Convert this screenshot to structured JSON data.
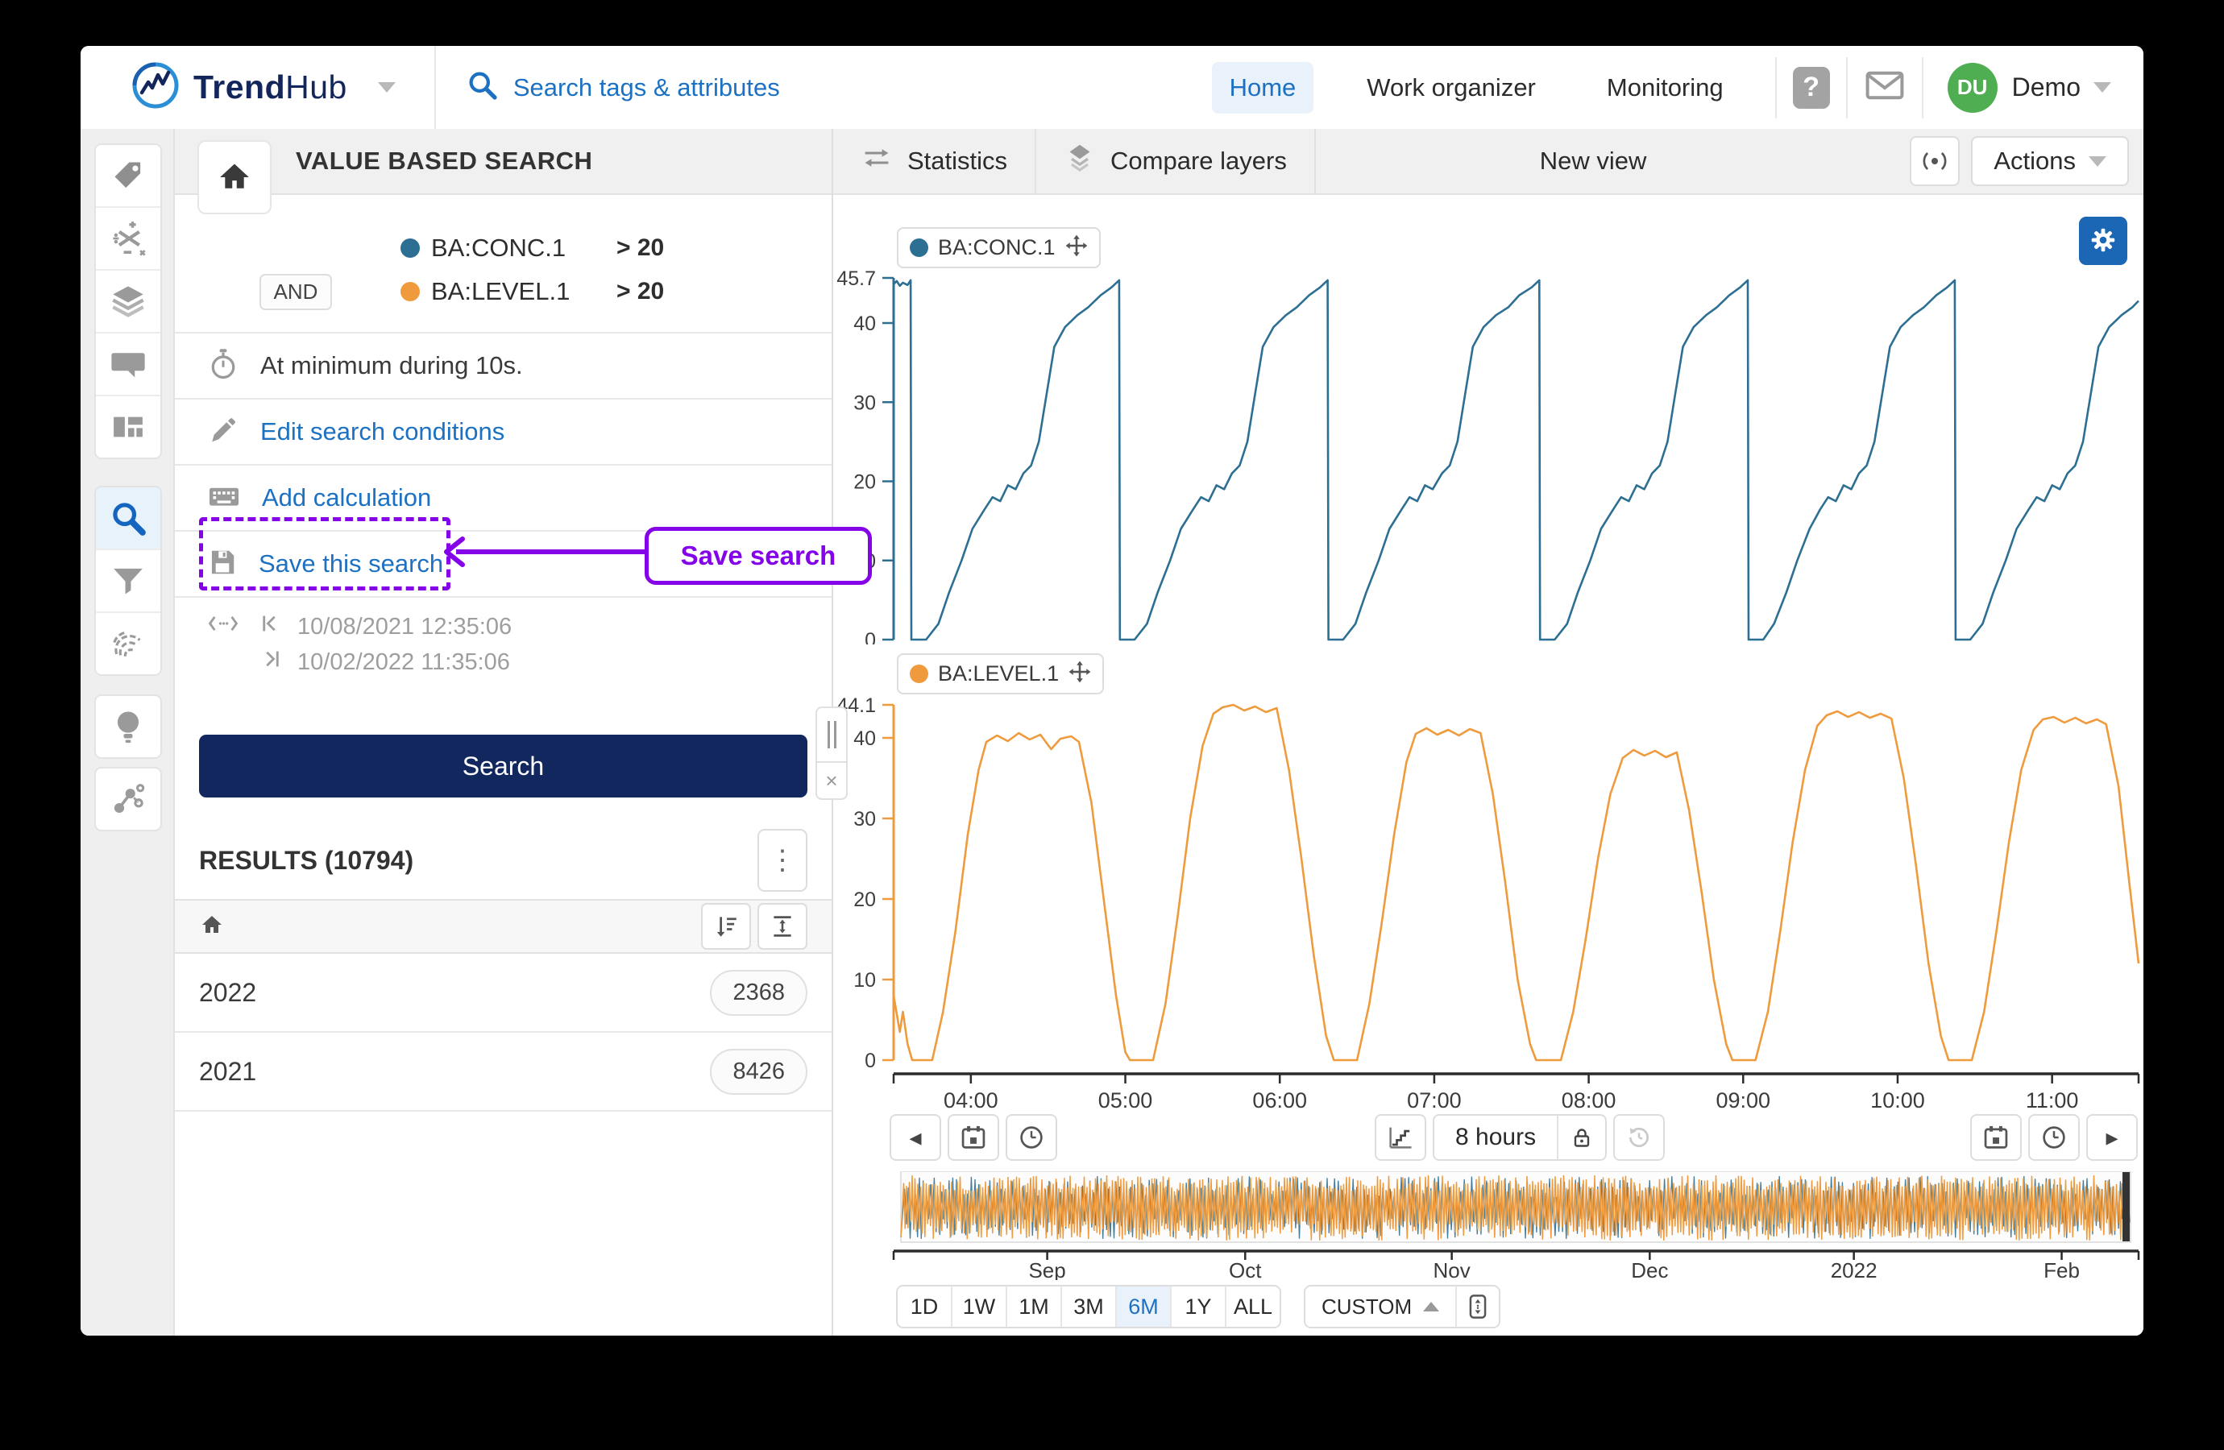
{
  "app": {
    "logo": {
      "trend": "Trend",
      "hub": "Hub"
    },
    "search_placeholder": "Search tags & attributes",
    "nav": [
      {
        "label": "Home",
        "active": true
      },
      {
        "label": "Work organizer",
        "active": false
      },
      {
        "label": "Monitoring",
        "active": false
      }
    ],
    "help_glyph": "?",
    "user": {
      "initials": "DU",
      "name": "Demo"
    }
  },
  "icons": {
    "kebab": "⋮",
    "close": "×",
    "arrow_left": "◂",
    "arrow_right": "▸"
  },
  "search_panel": {
    "title": "VALUE BASED SEARCH",
    "conditions": [
      {
        "tag": "BA:CONC.1",
        "operator": ">",
        "value": "20",
        "color": "#2d6f93",
        "conjunction": ""
      },
      {
        "tag": "BA:LEVEL.1",
        "operator": ">",
        "value": "20",
        "color": "#ef9b3d",
        "conjunction": "AND"
      }
    ],
    "duration_text": "At minimum during 10s.",
    "edit_link": "Edit search conditions",
    "add_calc_link": "Add calculation",
    "save_link": "Save this search",
    "annotation": {
      "label": "Save search",
      "color": "#8403e8"
    },
    "range": {
      "start": "10/08/2021 12:35:06",
      "end": "10/02/2022 11:35:06"
    },
    "search_button_label": "Search",
    "results_title": "RESULTS (10794)",
    "results": [
      {
        "label": "2022",
        "count": "2368"
      },
      {
        "label": "2021",
        "count": "8426"
      }
    ]
  },
  "view": {
    "tabs": [
      {
        "label": "Statistics"
      },
      {
        "label": "Compare layers"
      }
    ],
    "title": "New view",
    "actions_label": "Actions",
    "interval_label": "8 hours",
    "custom_label": "CUSTOM",
    "zoom_buttons": [
      {
        "label": "1D"
      },
      {
        "label": "1W"
      },
      {
        "label": "1M"
      },
      {
        "label": "3M"
      },
      {
        "label": "6M",
        "active": true
      },
      {
        "label": "1Y"
      },
      {
        "label": "ALL"
      }
    ],
    "active_zoom": "6M"
  },
  "chart_data": [
    {
      "type": "line",
      "title": "BA:CONC.1",
      "color": "#2d6f93",
      "x_range": [
        3.5,
        11.56
      ],
      "ylim": [
        0,
        45.7
      ],
      "grid": false,
      "y_ticks": [
        {
          "v": 0,
          "label": "0"
        },
        {
          "v": 10,
          "label": "10"
        },
        {
          "v": 20,
          "label": "20"
        },
        {
          "v": 30,
          "label": "30"
        },
        {
          "v": 40,
          "label": "40"
        },
        {
          "v": 45.7,
          "label": "45.7"
        }
      ],
      "x_ticks": [
        {
          "label": "04:00",
          "hour": 4
        },
        {
          "label": "05:00",
          "hour": 5
        },
        {
          "label": "06:00",
          "hour": 6
        },
        {
          "label": "07:00",
          "hour": 7
        },
        {
          "label": "08:00",
          "hour": 8
        },
        {
          "label": "09:00",
          "hour": 9
        },
        {
          "label": "10:00",
          "hour": 10
        },
        {
          "label": "11:00",
          "hour": 11
        }
      ],
      "points": [
        [
          3.5,
          44.9
        ],
        [
          3.52,
          45.3
        ],
        [
          3.54,
          44.7
        ],
        [
          3.56,
          45.1
        ],
        [
          3.59,
          44.8
        ],
        [
          3.61,
          45.4
        ],
        [
          3.615,
          0
        ],
        [
          3.71,
          0
        ],
        [
          3.79,
          2
        ],
        [
          3.86,
          6
        ],
        [
          3.94,
          10
        ],
        [
          4.01,
          14
        ],
        [
          4.09,
          16.5
        ],
        [
          4.14,
          18
        ],
        [
          4.19,
          17.5
        ],
        [
          4.24,
          19.5
        ],
        [
          4.29,
          19
        ],
        [
          4.34,
          21
        ],
        [
          4.39,
          22
        ],
        [
          4.44,
          25
        ],
        [
          4.49,
          31
        ],
        [
          4.54,
          37
        ],
        [
          4.61,
          39.5
        ],
        [
          4.69,
          41
        ],
        [
          4.76,
          42
        ],
        [
          4.84,
          43.5
        ],
        [
          4.91,
          44.5
        ],
        [
          4.96,
          45.4
        ],
        [
          4.965,
          0
        ],
        [
          5.06,
          0
        ],
        [
          5.14,
          2
        ],
        [
          5.21,
          6
        ],
        [
          5.29,
          10
        ],
        [
          5.36,
          14
        ],
        [
          5.44,
          16.5
        ],
        [
          5.49,
          18
        ],
        [
          5.54,
          17.5
        ],
        [
          5.59,
          19.5
        ],
        [
          5.64,
          19
        ],
        [
          5.69,
          21
        ],
        [
          5.74,
          22
        ],
        [
          5.79,
          25
        ],
        [
          5.84,
          31
        ],
        [
          5.89,
          37
        ],
        [
          5.96,
          39.5
        ],
        [
          6.04,
          41
        ],
        [
          6.11,
          42
        ],
        [
          6.19,
          43.5
        ],
        [
          6.26,
          44.5
        ],
        [
          6.31,
          45.4
        ],
        [
          6.315,
          0
        ],
        [
          6.41,
          0
        ],
        [
          6.49,
          2
        ],
        [
          6.56,
          6
        ],
        [
          6.64,
          10
        ],
        [
          6.71,
          14
        ],
        [
          6.79,
          16.5
        ],
        [
          6.84,
          18
        ],
        [
          6.89,
          17.5
        ],
        [
          6.94,
          19.5
        ],
        [
          6.99,
          19
        ],
        [
          7.05,
          21
        ],
        [
          7.1,
          22
        ],
        [
          7.15,
          25
        ],
        [
          7.2,
          31
        ],
        [
          7.25,
          37
        ],
        [
          7.32,
          39.5
        ],
        [
          7.4,
          41
        ],
        [
          7.48,
          42
        ],
        [
          7.55,
          43.5
        ],
        [
          7.63,
          44.5
        ],
        [
          7.68,
          45.4
        ],
        [
          7.685,
          0
        ],
        [
          7.78,
          0
        ],
        [
          7.86,
          2
        ],
        [
          7.93,
          6
        ],
        [
          8.01,
          10
        ],
        [
          8.08,
          14
        ],
        [
          8.16,
          16.5
        ],
        [
          8.21,
          18
        ],
        [
          8.26,
          17.5
        ],
        [
          8.31,
          19.5
        ],
        [
          8.36,
          19
        ],
        [
          8.41,
          21
        ],
        [
          8.46,
          22
        ],
        [
          8.51,
          25
        ],
        [
          8.56,
          31
        ],
        [
          8.61,
          37
        ],
        [
          8.68,
          39.5
        ],
        [
          8.76,
          41
        ],
        [
          8.83,
          42
        ],
        [
          8.91,
          43.5
        ],
        [
          8.98,
          44.5
        ],
        [
          9.03,
          45.4
        ],
        [
          9.035,
          0
        ],
        [
          9.13,
          0
        ],
        [
          9.2,
          2
        ],
        [
          9.28,
          6
        ],
        [
          9.35,
          10
        ],
        [
          9.43,
          14
        ],
        [
          9.5,
          16.5
        ],
        [
          9.55,
          18
        ],
        [
          9.6,
          17.5
        ],
        [
          9.65,
          19.5
        ],
        [
          9.7,
          19
        ],
        [
          9.75,
          21
        ],
        [
          9.8,
          22
        ],
        [
          9.85,
          25
        ],
        [
          9.9,
          31
        ],
        [
          9.95,
          37
        ],
        [
          10.02,
          39.5
        ],
        [
          10.1,
          41
        ],
        [
          10.17,
          42
        ],
        [
          10.25,
          43.5
        ],
        [
          10.32,
          44.5
        ],
        [
          10.37,
          45.4
        ],
        [
          10.375,
          0
        ],
        [
          10.47,
          0
        ],
        [
          10.55,
          2
        ],
        [
          10.62,
          6
        ],
        [
          10.7,
          10
        ],
        [
          10.77,
          14
        ],
        [
          10.85,
          16.5
        ],
        [
          10.9,
          18
        ],
        [
          10.95,
          17.5
        ],
        [
          11.0,
          19.5
        ],
        [
          11.05,
          19
        ],
        [
          11.1,
          21
        ],
        [
          11.15,
          22
        ],
        [
          11.2,
          25
        ],
        [
          11.25,
          31
        ],
        [
          11.3,
          37
        ],
        [
          11.37,
          39.5
        ],
        [
          11.45,
          41
        ],
        [
          11.52,
          42
        ],
        [
          11.56,
          42.8
        ]
      ]
    },
    {
      "type": "line",
      "title": "BA:LEVEL.1",
      "color": "#ef9b3d",
      "x_range": [
        3.5,
        11.56
      ],
      "ylim": [
        0,
        44.1
      ],
      "grid": false,
      "y_ticks": [
        {
          "v": 0,
          "label": "0"
        },
        {
          "v": 10,
          "label": "10"
        },
        {
          "v": 20,
          "label": "20"
        },
        {
          "v": 30,
          "label": "30"
        },
        {
          "v": 40,
          "label": "40"
        },
        {
          "v": 44.1,
          "label": "44.1"
        }
      ],
      "x_ticks": [
        {
          "label": "04:00",
          "hour": 4
        },
        {
          "label": "05:00",
          "hour": 5
        },
        {
          "label": "06:00",
          "hour": 6
        },
        {
          "label": "07:00",
          "hour": 7
        },
        {
          "label": "08:00",
          "hour": 8
        },
        {
          "label": "09:00",
          "hour": 9
        },
        {
          "label": "10:00",
          "hour": 10
        },
        {
          "label": "11:00",
          "hour": 11
        }
      ],
      "points": [
        [
          3.5,
          8
        ],
        [
          3.54,
          3.5
        ],
        [
          3.56,
          6
        ],
        [
          3.59,
          2
        ],
        [
          3.62,
          0
        ],
        [
          3.75,
          0
        ],
        [
          3.82,
          6
        ],
        [
          3.9,
          16
        ],
        [
          3.98,
          28
        ],
        [
          4.05,
          36
        ],
        [
          4.1,
          39.5
        ],
        [
          4.17,
          40.3
        ],
        [
          4.24,
          39.6
        ],
        [
          4.31,
          40.6
        ],
        [
          4.38,
          39.8
        ],
        [
          4.45,
          40.4
        ],
        [
          4.52,
          38.6
        ],
        [
          4.58,
          39.9
        ],
        [
          4.65,
          40.2
        ],
        [
          4.7,
          39.5
        ],
        [
          4.78,
          32
        ],
        [
          4.86,
          20
        ],
        [
          4.94,
          8
        ],
        [
          5.0,
          1
        ],
        [
          5.03,
          0
        ],
        [
          5.18,
          0
        ],
        [
          5.26,
          7
        ],
        [
          5.34,
          18
        ],
        [
          5.42,
          30
        ],
        [
          5.5,
          39
        ],
        [
          5.57,
          43
        ],
        [
          5.63,
          43.8
        ],
        [
          5.7,
          44.1
        ],
        [
          5.77,
          43.4
        ],
        [
          5.84,
          43.9
        ],
        [
          5.91,
          43.2
        ],
        [
          5.98,
          43.7
        ],
        [
          6.06,
          36
        ],
        [
          6.14,
          25
        ],
        [
          6.22,
          13
        ],
        [
          6.3,
          3
        ],
        [
          6.35,
          0
        ],
        [
          6.5,
          0
        ],
        [
          6.58,
          7
        ],
        [
          6.66,
          17
        ],
        [
          6.74,
          28
        ],
        [
          6.82,
          37
        ],
        [
          6.88,
          40.5
        ],
        [
          6.95,
          41.2
        ],
        [
          7.02,
          40.4
        ],
        [
          7.09,
          41.0
        ],
        [
          7.16,
          40.3
        ],
        [
          7.23,
          41.1
        ],
        [
          7.3,
          40.6
        ],
        [
          7.38,
          33
        ],
        [
          7.46,
          22
        ],
        [
          7.54,
          10
        ],
        [
          7.62,
          2
        ],
        [
          7.66,
          0
        ],
        [
          7.82,
          0
        ],
        [
          7.9,
          6
        ],
        [
          7.98,
          15
        ],
        [
          8.06,
          25
        ],
        [
          8.14,
          33
        ],
        [
          8.22,
          37.5
        ],
        [
          8.29,
          38.5
        ],
        [
          8.36,
          37.8
        ],
        [
          8.43,
          38.4
        ],
        [
          8.5,
          37.6
        ],
        [
          8.57,
          38.2
        ],
        [
          8.65,
          31
        ],
        [
          8.73,
          21
        ],
        [
          8.81,
          10
        ],
        [
          8.89,
          2
        ],
        [
          8.93,
          0
        ],
        [
          9.08,
          0
        ],
        [
          9.16,
          6
        ],
        [
          9.24,
          16
        ],
        [
          9.32,
          27
        ],
        [
          9.4,
          36
        ],
        [
          9.48,
          41.5
        ],
        [
          9.54,
          42.8
        ],
        [
          9.61,
          43.3
        ],
        [
          9.68,
          42.6
        ],
        [
          9.75,
          43.2
        ],
        [
          9.82,
          42.5
        ],
        [
          9.89,
          43.0
        ],
        [
          9.96,
          42.4
        ],
        [
          10.04,
          35
        ],
        [
          10.12,
          24
        ],
        [
          10.2,
          12
        ],
        [
          10.28,
          3
        ],
        [
          10.33,
          0
        ],
        [
          10.48,
          0
        ],
        [
          10.56,
          6
        ],
        [
          10.64,
          16
        ],
        [
          10.72,
          27
        ],
        [
          10.8,
          36
        ],
        [
          10.88,
          41
        ],
        [
          10.94,
          42.3
        ],
        [
          11.01,
          42.6
        ],
        [
          11.08,
          41.9
        ],
        [
          11.15,
          42.5
        ],
        [
          11.22,
          41.8
        ],
        [
          11.29,
          42.3
        ],
        [
          11.35,
          41.7
        ],
        [
          11.43,
          34
        ],
        [
          11.5,
          22
        ],
        [
          11.56,
          12
        ]
      ]
    },
    {
      "type": "line",
      "title": "overview-minimap",
      "note": "dense 6-month minimap of both series, unreadable texture of overlapping blue and orange cycles",
      "series_colors": [
        "#2d6f93",
        "#ef9b3d"
      ],
      "x_ticks": [
        {
          "label": "Sep",
          "f": 0.119
        },
        {
          "label": "Oct",
          "f": 0.28
        },
        {
          "label": "Nov",
          "f": 0.448
        },
        {
          "label": "Dec",
          "f": 0.609
        },
        {
          "label": "2022",
          "f": 0.775
        },
        {
          "label": "Feb",
          "f": 0.944
        }
      ]
    }
  ]
}
